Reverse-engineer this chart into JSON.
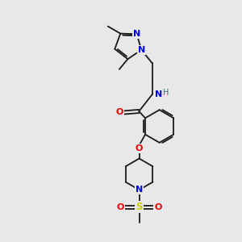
{
  "background_color": "#e8e8e8",
  "figsize": [
    3.0,
    3.0
  ],
  "dpi": 100,
  "bond_color": "#1a1a1a",
  "bond_width": 1.3,
  "colors": {
    "N": "#0000ee",
    "O": "#ee0000",
    "S": "#cccc00",
    "H": "#008888",
    "C": "#1a1a1a"
  },
  "font_size": 7.5
}
